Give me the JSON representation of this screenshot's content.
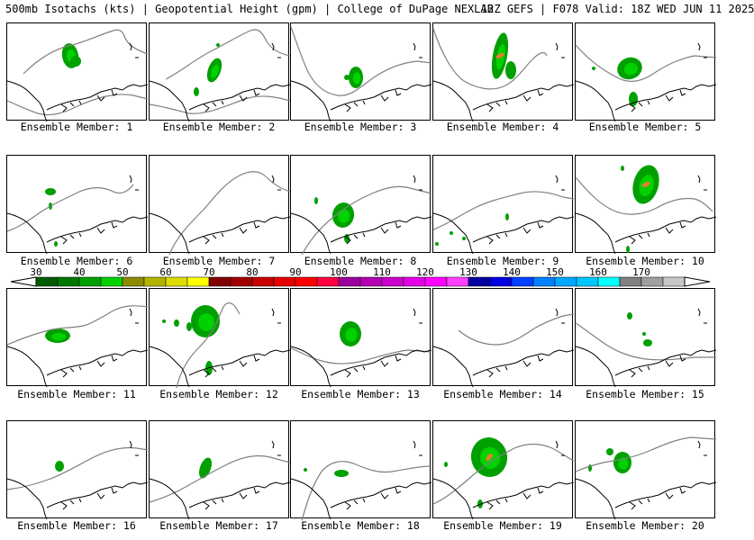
{
  "header": {
    "left": "500mb Isotachs (kts) | Geopotential Height (gpm) | College of DuPage NEXLAB",
    "right": "12Z GEFS | F078 Valid: 18Z WED JUN 11 2025"
  },
  "colorbar": {
    "labels": [
      "30",
      "40",
      "50",
      "60",
      "70",
      "80",
      "90",
      "100",
      "110",
      "120",
      "130",
      "140",
      "150",
      "160",
      "170"
    ],
    "colors": [
      "#005a00",
      "#007800",
      "#00a000",
      "#00d200",
      "#8c8c00",
      "#b4b400",
      "#dcdc00",
      "#ffff00",
      "#800000",
      "#a00000",
      "#c80000",
      "#e60000",
      "#ff0000",
      "#ff0040",
      "#9c009c",
      "#b400b4",
      "#cc00cc",
      "#e400e4",
      "#ff00ff",
      "#ff40ff",
      "#0000a0",
      "#0000e0",
      "#0040ff",
      "#0080ff",
      "#00a8ff",
      "#00c8ff",
      "#00ffff",
      "#808080",
      "#a0a0a0",
      "#c8c8c8"
    ]
  },
  "panels": [
    {
      "label": "Ensemble Member: 1"
    },
    {
      "label": "Ensemble Member: 2"
    },
    {
      "label": "Ensemble Member: 3"
    },
    {
      "label": "Ensemble Member: 4"
    },
    {
      "label": "Ensemble Member: 5"
    },
    {
      "label": "Ensemble Member: 6"
    },
    {
      "label": "Ensemble Member: 7"
    },
    {
      "label": "Ensemble Member: 8"
    },
    {
      "label": "Ensemble Member: 9"
    },
    {
      "label": "Ensemble Member: 10"
    },
    {
      "label": "Ensemble Member: 11"
    },
    {
      "label": "Ensemble Member: 12"
    },
    {
      "label": "Ensemble Member: 13"
    },
    {
      "label": "Ensemble Member: 14"
    },
    {
      "label": "Ensemble Member: 15"
    },
    {
      "label": "Ensemble Member: 16"
    },
    {
      "label": "Ensemble Member: 17"
    },
    {
      "label": "Ensemble Member: 18"
    },
    {
      "label": "Ensemble Member: 19"
    },
    {
      "label": "Ensemble Member: 20"
    }
  ]
}
